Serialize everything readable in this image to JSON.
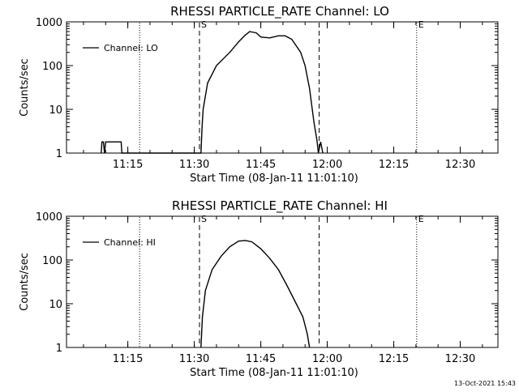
{
  "chart_data": [
    {
      "type": "line",
      "title": "RHESSI PARTICLE_RATE Channel: LO",
      "xlabel": "Start Time (08-Jan-11 11:01:10)",
      "ylabel": "Counts/sec",
      "x_tick_labels": [
        "11:15",
        "11:30",
        "11:45",
        "12:00",
        "12:15",
        "12:30"
      ],
      "y_tick_labels": [
        "1",
        "10",
        "100",
        "1000"
      ],
      "y_scale": "log",
      "xlim": [
        "11:01:10",
        "12:38:30"
      ],
      "ylim": [
        1,
        1000
      ],
      "legend_position": "top-left",
      "series": [
        {
          "name": "Channel: LO",
          "points": [
            [
              "11:09:00",
              1
            ],
            [
              "11:09:10",
              1.8
            ],
            [
              "11:09:30",
              1.8
            ],
            [
              "11:09:45",
              1
            ],
            [
              "11:10:00",
              1.8
            ],
            [
              "11:10:30",
              1.8
            ],
            [
              "11:13:30",
              1.8
            ],
            [
              "11:13:40",
              1
            ],
            [
              "11:31:30",
              1
            ],
            [
              "11:31:45",
              4
            ],
            [
              "11:32:00",
              10
            ],
            [
              "11:33:00",
              40
            ],
            [
              "11:35:00",
              100
            ],
            [
              "11:38:00",
              200
            ],
            [
              "11:40:00",
              350
            ],
            [
              "11:41:30",
              500
            ],
            [
              "11:42:30",
              600
            ],
            [
              "11:44:00",
              560
            ],
            [
              "11:45:00",
              450
            ],
            [
              "11:47:00",
              430
            ],
            [
              "11:49:00",
              480
            ],
            [
              "11:50:30",
              480
            ],
            [
              "11:52:00",
              400
            ],
            [
              "11:54:00",
              200
            ],
            [
              "11:55:00",
              100
            ],
            [
              "11:56:00",
              30
            ],
            [
              "11:57:00",
              5
            ],
            [
              "11:57:40",
              2
            ],
            [
              "11:58:00",
              1
            ],
            [
              "11:58:30",
              1.8
            ],
            [
              "11:59:00",
              1
            ]
          ],
          "color": "#000000"
        }
      ],
      "markers": {
        "start_label": "S",
        "end_label": "E"
      }
    },
    {
      "type": "line",
      "title": "RHESSI PARTICLE_RATE Channel: HI",
      "xlabel": "Start Time (08-Jan-11 11:01:10)",
      "ylabel": "Counts/sec",
      "x_tick_labels": [
        "11:15",
        "11:30",
        "11:45",
        "12:00",
        "12:15",
        "12:30"
      ],
      "y_tick_labels": [
        "1",
        "10",
        "100",
        "1000"
      ],
      "y_scale": "log",
      "xlim": [
        "11:01:10",
        "12:38:30"
      ],
      "ylim": [
        1,
        1000
      ],
      "legend_position": "top-left",
      "series": [
        {
          "name": "Channel: HI",
          "points": [
            [
              "11:31:30",
              1
            ],
            [
              "11:31:50",
              5
            ],
            [
              "11:32:30",
              20
            ],
            [
              "11:34:00",
              60
            ],
            [
              "11:36:00",
              120
            ],
            [
              "11:38:00",
              200
            ],
            [
              "11:40:00",
              270
            ],
            [
              "11:41:30",
              280
            ],
            [
              "11:43:00",
              260
            ],
            [
              "11:45:00",
              180
            ],
            [
              "11:47:00",
              110
            ],
            [
              "11:49:00",
              60
            ],
            [
              "11:51:00",
              25
            ],
            [
              "11:53:00",
              10
            ],
            [
              "11:54:30",
              5
            ],
            [
              "11:55:30",
              2
            ],
            [
              "11:56:00",
              1
            ]
          ],
          "color": "#000000"
        }
      ],
      "markers": {
        "start_label": "S",
        "end_label": "E"
      }
    }
  ],
  "footer_timestamp": "13-Oct-2021 15:43"
}
